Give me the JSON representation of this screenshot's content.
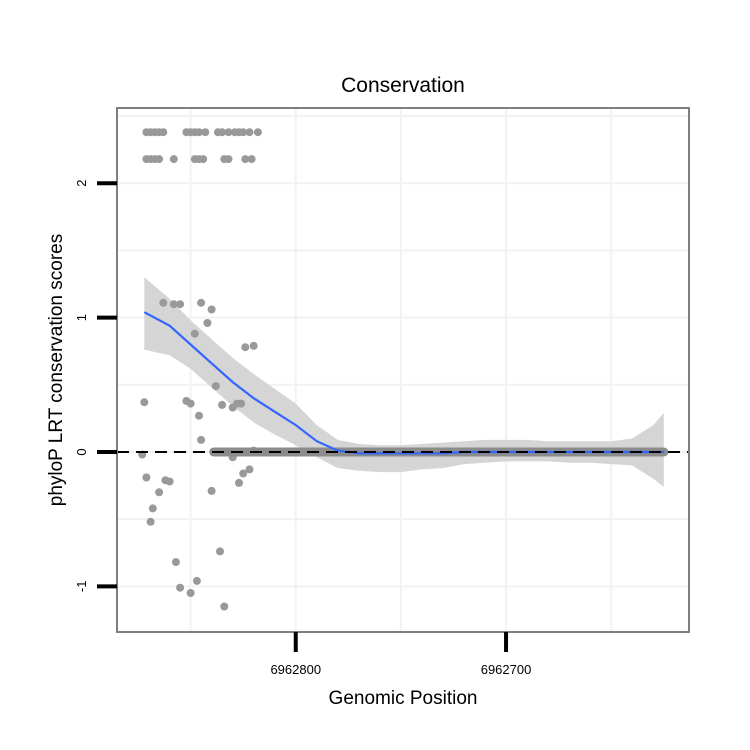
{
  "chart_data": {
    "type": "scatter",
    "title": "Conservation",
    "xlabel": "Genomic Position",
    "ylabel": "phyloP LRT conservation scores",
    "x_reversed": true,
    "xlim": [
      6962885,
      6962613
    ],
    "ylim": [
      -1.34,
      2.56
    ],
    "x_ticks": [
      {
        "value": 6962800,
        "label": "6962800"
      },
      {
        "value": 6962700,
        "label": "6962700"
      }
    ],
    "y_ticks": [
      {
        "value": -1,
        "label": "-1"
      },
      {
        "value": 0,
        "label": "0"
      },
      {
        "value": 1,
        "label": "1"
      },
      {
        "value": 2,
        "label": "2"
      }
    ],
    "reference_line": {
      "y": 0,
      "style": "dashed"
    },
    "grid": true,
    "smooth_series": {
      "name": "loess fit",
      "color": "#3366ff",
      "band_color": "#d3d3d3",
      "x": [
        6962872,
        6962860,
        6962850,
        6962840,
        6962830,
        6962820,
        6962810,
        6962800,
        6962790,
        6962780,
        6962770,
        6962760,
        6962750,
        6962740,
        6962730,
        6962720,
        6962710,
        6962700,
        6962690,
        6962680,
        6962670,
        6962660,
        6962650,
        6962640,
        6962630,
        6962625
      ],
      "y": [
        1.04,
        0.94,
        0.8,
        0.66,
        0.52,
        0.4,
        0.3,
        0.2,
        0.08,
        0.01,
        -0.01,
        -0.01,
        -0.01,
        -0.01,
        -0.01,
        0.0,
        0.0,
        0.0,
        0.0,
        0.0,
        0.0,
        0.0,
        0.0,
        0.0,
        0.0,
        0.0
      ],
      "upper": [
        1.3,
        1.14,
        0.98,
        0.84,
        0.7,
        0.58,
        0.47,
        0.36,
        0.2,
        0.09,
        0.06,
        0.05,
        0.05,
        0.06,
        0.07,
        0.08,
        0.09,
        0.09,
        0.09,
        0.08,
        0.08,
        0.08,
        0.08,
        0.1,
        0.2,
        0.29
      ],
      "lower": [
        0.76,
        0.72,
        0.62,
        0.48,
        0.34,
        0.22,
        0.13,
        0.05,
        -0.04,
        -0.12,
        -0.14,
        -0.15,
        -0.15,
        -0.13,
        -0.12,
        -0.09,
        -0.08,
        -0.07,
        -0.07,
        -0.07,
        -0.08,
        -0.08,
        -0.09,
        -0.1,
        -0.2,
        -0.26
      ]
    },
    "zero_run": {
      "x_from": 6962839,
      "x_to": 6962625,
      "y": 0.0
    },
    "points": {
      "color": "#999999",
      "x": [
        6962871,
        6962869,
        6962867,
        6962865,
        6962863,
        6962852,
        6962850,
        6962848,
        6962846,
        6962843,
        6962837,
        6962835,
        6962832,
        6962829,
        6962827,
        6962825,
        6962822,
        6962818,
        6962871,
        6962869,
        6962867,
        6962865,
        6962858,
        6962848,
        6962846,
        6962844,
        6962834,
        6962832,
        6962824,
        6962821,
        6962863,
        6962858,
        6962855,
        6962848,
        6962845,
        6962842,
        6962840,
        6962838,
        6962872,
        6962852,
        6962850,
        6962846,
        6962835,
        6962830,
        6962828,
        6962826,
        6962824,
        6962820,
        6962873,
        6962871,
        6962869,
        6962868,
        6962865,
        6962862,
        6962860,
        6962857,
        6962855,
        6962850,
        6962847,
        6962845,
        6962840,
        6962836,
        6962834,
        6962830,
        6962827,
        6962825,
        6962822,
        6962820,
        6962817,
        6962816,
        6962815
      ],
      "y": [
        2.38,
        2.38,
        2.38,
        2.38,
        2.38,
        2.38,
        2.38,
        2.38,
        2.38,
        2.38,
        2.38,
        2.38,
        2.38,
        2.38,
        2.38,
        2.38,
        2.38,
        2.38,
        2.18,
        2.18,
        2.18,
        2.18,
        2.18,
        2.18,
        2.18,
        2.18,
        2.18,
        2.18,
        2.18,
        2.18,
        1.11,
        1.1,
        1.1,
        0.88,
        1.11,
        0.96,
        1.06,
        0.49,
        0.37,
        0.38,
        0.36,
        0.27,
        0.35,
        0.33,
        0.36,
        0.36,
        0.78,
        0.79,
        -0.02,
        -0.19,
        -0.52,
        -0.42,
        -0.3,
        -0.21,
        -0.22,
        -0.82,
        -1.01,
        -1.05,
        -0.96,
        0.09,
        -0.29,
        -0.74,
        -1.15,
        -0.04,
        -0.23,
        -0.16,
        -0.13,
        0.01,
        0.0,
        0.0,
        0.0
      ]
    }
  }
}
